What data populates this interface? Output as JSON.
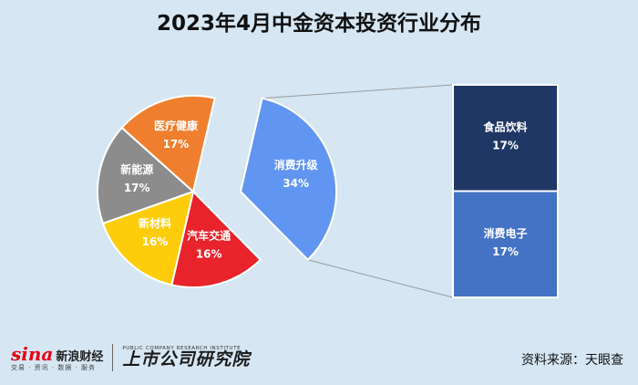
{
  "title": "2023年4月中金资本投资行业分布",
  "source": "资料来源：天眼查",
  "logos": {
    "sina_mark": "sina",
    "sina_name": "新浪财经",
    "sina_sub": "交易 · 资讯 · 数据 · 服务",
    "institute_en": "PUBLIC COMPANY RESEARCH INSTITUTE",
    "institute_cn": "上市公司研究院"
  },
  "chart_data": {
    "type": "pie",
    "title": "2023年4月中金资本投资行业分布",
    "start_angle_deg": 13,
    "direction": "clockwise",
    "slices": [
      {
        "label": "消费升级",
        "value": 34,
        "display": "34%",
        "color": "#6195f2",
        "exploded": true
      },
      {
        "label": "汽车交通",
        "value": 16,
        "display": "16%",
        "color": "#e8232b"
      },
      {
        "label": "新材料",
        "value": 16,
        "display": "16%",
        "color": "#fdcd0c"
      },
      {
        "label": "新能源",
        "value": 17,
        "display": "17%",
        "color": "#8c8c8c"
      },
      {
        "label": "医疗健康",
        "value": 17,
        "display": "17%",
        "color": "#ef7f2f"
      }
    ],
    "breakdown": {
      "of": "消费升级",
      "type": "bar-of-pie",
      "segments": [
        {
          "label": "食品饮料",
          "value": 17,
          "display": "17%",
          "color": "#1f3764"
        },
        {
          "label": "消费电子",
          "value": 17,
          "display": "17%",
          "color": "#4472c4"
        }
      ]
    }
  }
}
